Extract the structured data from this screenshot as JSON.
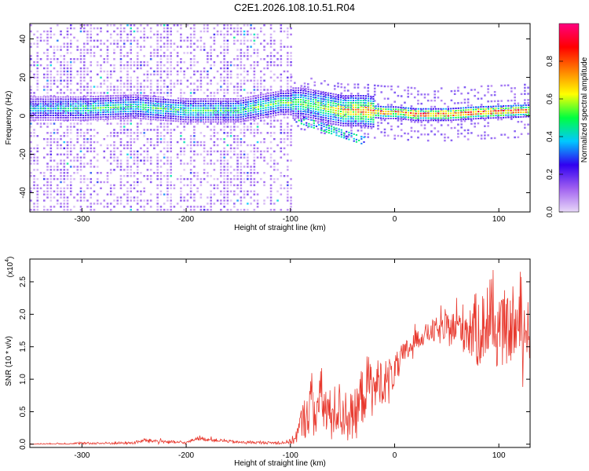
{
  "title": "C2E1.2026.108.10.51.R04",
  "chart_data": [
    {
      "type": "heatmap",
      "xlabel": "Height of straight line (km)",
      "ylabel": "Frequency (Hz)",
      "xlim": [
        -350,
        130
      ],
      "ylim": [
        -50,
        48
      ],
      "x_ticks": [
        -300,
        -200,
        -100,
        0,
        100
      ],
      "x_tick_labels": [
        "-300",
        "-200",
        "-100",
        "0",
        "100"
      ],
      "y_ticks": [
        -40,
        -20,
        0,
        20,
        40
      ],
      "y_tick_labels": [
        "-40",
        "-20",
        "0",
        "20",
        "40"
      ],
      "colorbar": {
        "label": "Normalized spectral amplitude",
        "range": [
          0,
          1
        ],
        "ticks": [
          0.0,
          0.2,
          0.4,
          0.6,
          0.8
        ],
        "tick_labels": [
          "0.0",
          "0.2",
          "0.4",
          "0.6",
          "0.8"
        ],
        "colors": [
          "#e8d8f8",
          "#a060f0",
          "#3000f0",
          "#00c8ff",
          "#00ff40",
          "#ffff00",
          "#ff8000",
          "#ff0000",
          "#ff0080"
        ]
      },
      "ridge": {
        "x": [
          -350,
          -300,
          -250,
          -200,
          -150,
          -110,
          -90,
          -70,
          -50,
          -30,
          -10,
          0,
          20,
          50,
          80,
          130
        ],
        "frequency": [
          3,
          3,
          4,
          2,
          2,
          6,
          6,
          4,
          2,
          2,
          1,
          1,
          0,
          0,
          1,
          2
        ],
        "amplitude": [
          0.4,
          0.5,
          0.5,
          0.5,
          0.5,
          0.55,
          0.55,
          0.6,
          0.7,
          0.8,
          0.85,
          0.8,
          0.9,
          0.9,
          0.9,
          0.85
        ]
      },
      "noise_band": {
        "x_min": -350,
        "x_max": -100,
        "amplitude": 0.15
      }
    },
    {
      "type": "line",
      "xlabel": "Height of straight line (km)",
      "ylabel": "SNR (10 * v/v)",
      "y_multiplier": "(x10",
      "y_multiplier_exponent": "4",
      "color": "#e8392e",
      "xlim": [
        -350,
        130
      ],
      "ylim": [
        -0.05,
        2.85
      ],
      "x_ticks": [
        -300,
        -200,
        -100,
        0,
        100
      ],
      "x_tick_labels": [
        "-300",
        "-200",
        "-100",
        "0",
        "100"
      ],
      "y_ticks": [
        0.0,
        0.5,
        1.0,
        1.5,
        2.0,
        2.5
      ],
      "y_tick_labels": [
        "0.0",
        "0.5",
        "1.0",
        "1.5",
        "2.0",
        "2.5"
      ],
      "x": [
        -350,
        -300,
        -250,
        -240,
        -200,
        -190,
        -150,
        -110,
        -100,
        -95,
        -90,
        -85,
        -80,
        -75,
        -70,
        -65,
        -60,
        -55,
        -50,
        -45,
        -40,
        -35,
        -30,
        -25,
        -20,
        -15,
        -10,
        -5,
        0,
        5,
        10,
        20,
        30,
        40,
        50,
        60,
        70,
        80,
        90,
        100,
        110,
        120,
        130
      ],
      "y": [
        0.0,
        0.01,
        0.02,
        0.06,
        0.02,
        0.09,
        0.03,
        0.02,
        0.04,
        0.1,
        0.3,
        0.45,
        0.6,
        0.55,
        0.7,
        0.5,
        0.4,
        0.6,
        0.45,
        0.5,
        0.4,
        0.55,
        0.8,
        0.95,
        0.8,
        1.0,
        0.95,
        1.05,
        1.1,
        1.25,
        1.4,
        1.6,
        1.7,
        1.75,
        1.75,
        1.8,
        1.8,
        1.75,
        1.85,
        1.7,
        1.75,
        1.8,
        1.75
      ],
      "spread": [
        0.01,
        0.02,
        0.02,
        0.03,
        0.02,
        0.03,
        0.02,
        0.02,
        0.04,
        0.1,
        0.25,
        0.35,
        0.45,
        0.4,
        0.5,
        0.45,
        0.4,
        0.45,
        0.4,
        0.4,
        0.35,
        0.45,
        0.5,
        0.45,
        0.4,
        0.35,
        0.35,
        0.3,
        0.25,
        0.25,
        0.2,
        0.15,
        0.15,
        0.2,
        0.25,
        0.3,
        0.45,
        0.6,
        0.55,
        0.55,
        0.5,
        0.5,
        0.45
      ]
    }
  ]
}
